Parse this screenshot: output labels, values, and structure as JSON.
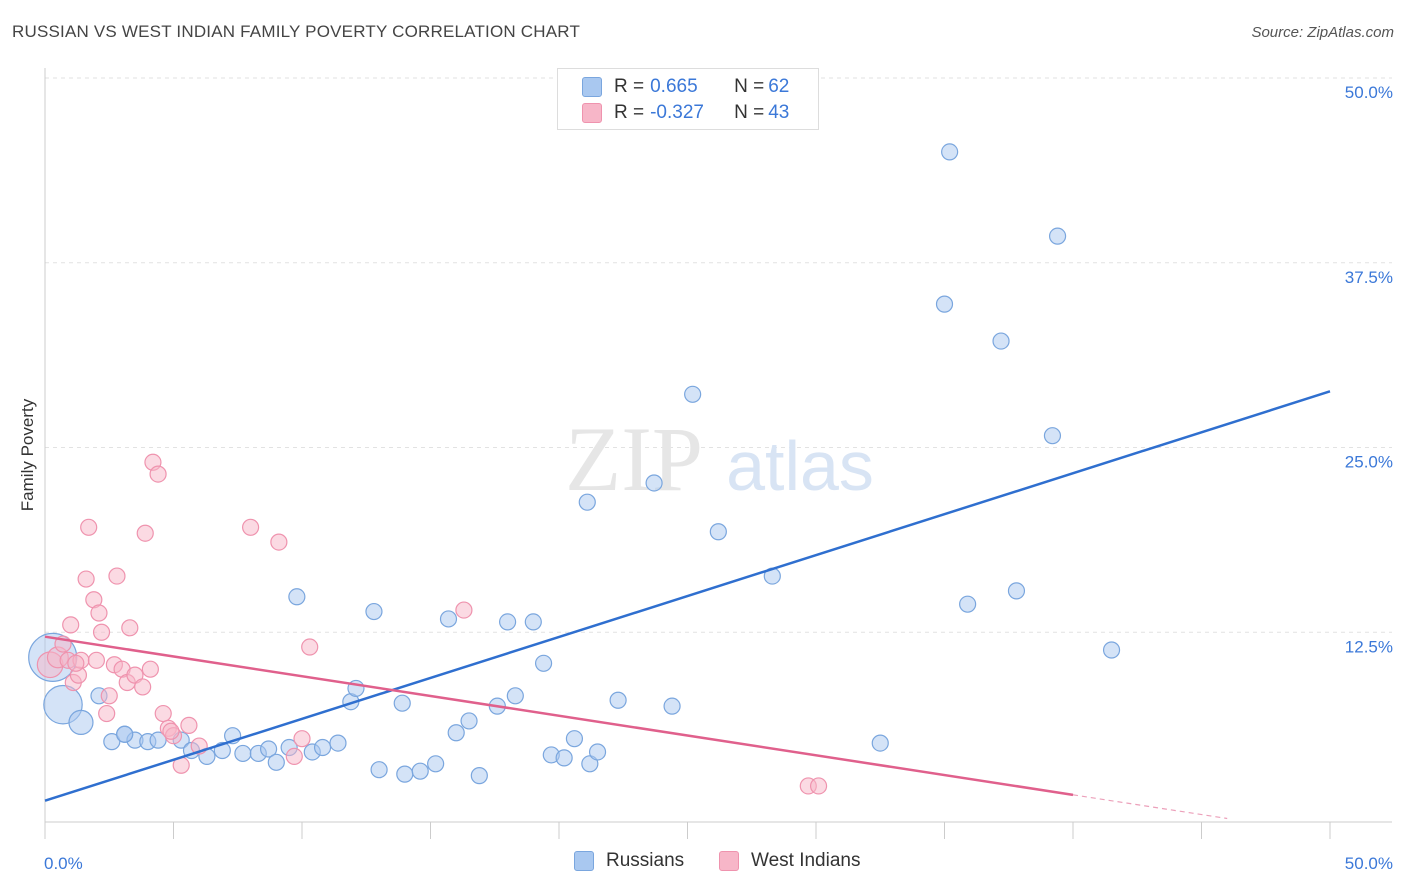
{
  "title": "RUSSIAN VS WEST INDIAN FAMILY POVERTY CORRELATION CHART",
  "source": "Source: ZipAtlas.com",
  "watermark": {
    "zip": "ZIP",
    "atlas": "atlas"
  },
  "legend_top": [
    {
      "r_label": "R = ",
      "r_value": "0.665",
      "n_label": "N = ",
      "n_value": "62"
    },
    {
      "r_label": "R = ",
      "r_value": "-0.327",
      "n_label": "N = ",
      "n_value": "43"
    }
  ],
  "colors": {
    "russians_fill": "#a9c8f0",
    "russians_stroke": "#7aa6de",
    "russians_line": "#2f6fcf",
    "west_fill": "#f7b6c8",
    "west_stroke": "#ef93ae",
    "west_line": "#e0608c",
    "grid": "#e2e2e2",
    "tick_label": "#3b78d8"
  },
  "chart_data": {
    "type": "scatter",
    "title": "RUSSIAN VS WEST INDIAN FAMILY POVERTY CORRELATION CHART",
    "xlabel": "",
    "ylabel": "Family Poverty",
    "xlim": [
      0,
      50
    ],
    "ylim": [
      0,
      50
    ],
    "x_tick_labels": [
      "0.0%",
      "50.0%"
    ],
    "y_tick_labels": [
      "12.5%",
      "25.0%",
      "37.5%",
      "50.0%"
    ],
    "y_ticks": [
      12.5,
      25.0,
      37.5,
      50.0
    ],
    "grid": true,
    "legend_position": "bottom",
    "series": [
      {
        "name": "Russians",
        "R": 0.665,
        "N": 62,
        "trend": {
          "x": [
            0,
            50
          ],
          "y": [
            1.1,
            28.8
          ]
        },
        "points": [
          [
            0.3,
            10.8,
            3
          ],
          [
            0.7,
            7.6,
            2.4
          ],
          [
            1.4,
            6.4,
            1.5
          ],
          [
            2.1,
            8.2,
            1
          ],
          [
            2.6,
            5.1,
            1
          ],
          [
            3.1,
            5.6,
            1
          ],
          [
            3.5,
            5.2,
            1
          ],
          [
            4.0,
            5.1,
            1
          ],
          [
            4.4,
            5.2,
            1
          ],
          [
            5.3,
            5.2,
            1
          ],
          [
            5.7,
            4.5,
            1
          ],
          [
            6.3,
            4.1,
            1
          ],
          [
            6.9,
            4.5,
            1
          ],
          [
            7.3,
            5.5,
            1
          ],
          [
            7.7,
            4.3,
            1
          ],
          [
            8.3,
            4.3,
            1
          ],
          [
            8.7,
            4.6,
            1
          ],
          [
            9.0,
            3.7,
            1
          ],
          [
            9.5,
            4.7,
            1
          ],
          [
            9.8,
            14.9,
            1
          ],
          [
            10.4,
            4.4,
            1
          ],
          [
            10.8,
            4.7,
            1
          ],
          [
            11.4,
            5.0,
            1
          ],
          [
            11.9,
            7.8,
            1
          ],
          [
            12.1,
            8.7,
            1
          ],
          [
            12.8,
            13.9,
            1
          ],
          [
            13.0,
            3.2,
            1
          ],
          [
            13.9,
            7.7,
            1
          ],
          [
            14.0,
            2.9,
            1
          ],
          [
            14.6,
            3.1,
            1
          ],
          [
            15.2,
            3.6,
            1
          ],
          [
            15.7,
            13.4,
            1
          ],
          [
            16.0,
            5.7,
            1
          ],
          [
            16.5,
            6.5,
            1
          ],
          [
            16.9,
            2.8,
            1
          ],
          [
            17.6,
            7.5,
            1
          ],
          [
            18.0,
            13.2,
            1
          ],
          [
            18.3,
            8.2,
            1
          ],
          [
            19.0,
            13.2,
            1
          ],
          [
            19.4,
            10.4,
            1
          ],
          [
            19.7,
            4.2,
            1
          ],
          [
            20.2,
            4.0,
            1
          ],
          [
            20.6,
            5.3,
            1
          ],
          [
            21.1,
            21.3,
            1
          ],
          [
            21.2,
            3.6,
            1
          ],
          [
            21.5,
            4.4,
            1
          ],
          [
            22.3,
            7.9,
            1
          ],
          [
            23.7,
            22.6,
            1
          ],
          [
            24.4,
            7.5,
            1
          ],
          [
            25.2,
            28.6,
            1
          ],
          [
            26.2,
            19.3,
            1
          ],
          [
            28.3,
            16.3,
            1
          ],
          [
            32.5,
            5.0,
            1
          ],
          [
            35.2,
            45.0,
            1
          ],
          [
            35.0,
            34.7,
            1
          ],
          [
            35.9,
            14.4,
            1
          ],
          [
            37.2,
            32.2,
            1
          ],
          [
            37.8,
            15.3,
            1
          ],
          [
            39.2,
            25.8,
            1
          ],
          [
            39.4,
            39.3,
            1
          ],
          [
            41.5,
            11.3,
            1
          ],
          [
            3.1,
            5.6,
            1
          ]
        ]
      },
      {
        "name": "West Indians",
        "R": -0.327,
        "N": 43,
        "trend": {
          "x": [
            0,
            40
          ],
          "y": [
            12.2,
            1.5
          ]
        },
        "trend_dashed": {
          "x": [
            40,
            46
          ],
          "y": [
            1.5,
            -0.1
          ]
        },
        "points": [
          [
            0.2,
            10.3,
            1.6
          ],
          [
            0.5,
            10.8,
            1.3
          ],
          [
            0.7,
            11.7,
            1
          ],
          [
            0.9,
            10.6,
            1
          ],
          [
            1.0,
            13.0,
            1
          ],
          [
            1.1,
            9.1,
            1
          ],
          [
            1.3,
            9.6,
            1
          ],
          [
            1.4,
            10.6,
            1
          ],
          [
            1.6,
            16.1,
            1
          ],
          [
            1.7,
            19.6,
            1
          ],
          [
            1.9,
            14.7,
            1
          ],
          [
            2.1,
            13.8,
            1
          ],
          [
            2.2,
            12.5,
            1
          ],
          [
            2.4,
            7.0,
            1
          ],
          [
            2.5,
            8.2,
            1
          ],
          [
            2.7,
            10.3,
            1
          ],
          [
            2.8,
            16.3,
            1
          ],
          [
            3.0,
            10.0,
            1
          ],
          [
            3.2,
            9.1,
            1
          ],
          [
            3.3,
            12.8,
            1
          ],
          [
            3.5,
            9.6,
            1
          ],
          [
            3.8,
            8.8,
            1
          ],
          [
            3.9,
            19.2,
            1
          ],
          [
            4.1,
            10.0,
            1
          ],
          [
            4.2,
            24.0,
            1
          ],
          [
            4.4,
            23.2,
            1
          ],
          [
            4.6,
            7.0,
            1
          ],
          [
            4.8,
            6.0,
            1
          ],
          [
            5.0,
            5.5,
            1
          ],
          [
            5.3,
            3.5,
            1
          ],
          [
            5.6,
            6.2,
            1
          ],
          [
            6.0,
            4.8,
            1
          ],
          [
            8.0,
            19.6,
            1
          ],
          [
            9.1,
            18.6,
            1
          ],
          [
            9.7,
            4.1,
            1
          ],
          [
            10.0,
            5.3,
            1
          ],
          [
            10.3,
            11.5,
            1
          ],
          [
            16.3,
            14.0,
            1
          ],
          [
            29.7,
            2.1,
            1
          ],
          [
            30.1,
            2.1,
            1
          ],
          [
            1.2,
            10.4,
            1
          ],
          [
            2.0,
            10.6,
            1
          ],
          [
            4.9,
            5.8,
            1
          ]
        ]
      }
    ]
  }
}
